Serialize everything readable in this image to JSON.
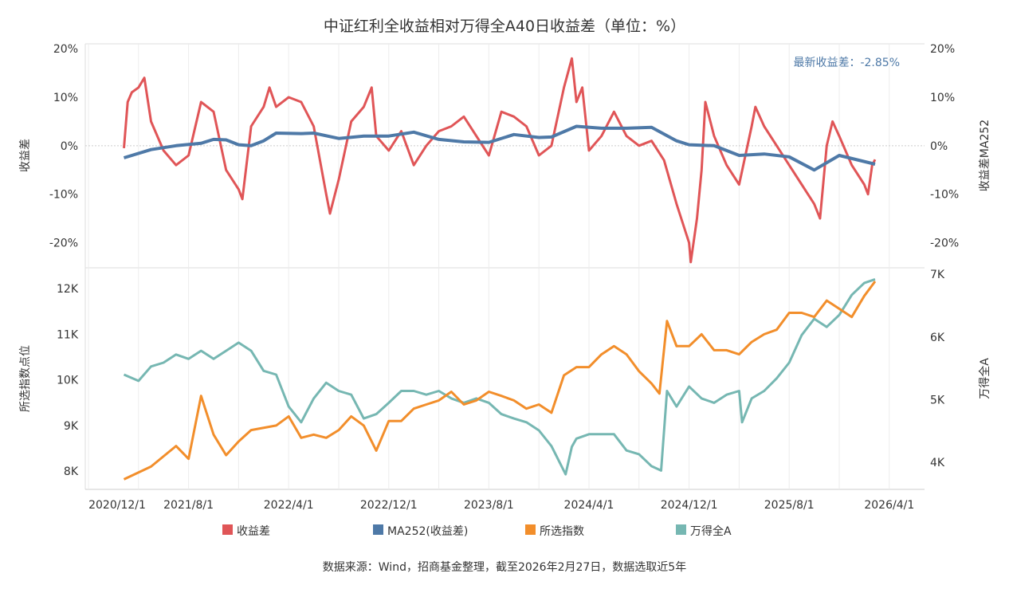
{
  "chart_data": {
    "type": "line",
    "title": "中证红利全收益相对万得全A40日收益差（单位：%）",
    "annotation": "最新收益差：-2.85%",
    "source": "数据来源：Wind，招商基金整理，截至2026年2月27日，数据选取近5年",
    "colors": {
      "diff": "#e05557",
      "ma": "#4e79a7",
      "index": "#f28e2b",
      "wind": "#76b7b2",
      "annotation": "#4e79a7"
    },
    "x_ticks": [
      "2020/12/1",
      "2021/8/1",
      "2022/4/1",
      "2022/12/1",
      "2023/8/1",
      "2024/4/1",
      "2024/12/1",
      "2025/8/1",
      "2026/4/1"
    ],
    "top_panel": {
      "ylabel_left": "收益差",
      "ylabel_right": "收益差MA252",
      "ylim": [
        -25,
        21
      ],
      "yticks": [
        20,
        10,
        0,
        -10,
        -20
      ],
      "ytick_labels": [
        "20%",
        "10%",
        "0%",
        "-10%",
        "-20%"
      ],
      "series": [
        {
          "name": "收益差",
          "color_key": "diff",
          "points": [
            [
              "2021-02-26",
              -0.5
            ],
            [
              "2021-03-05",
              9
            ],
            [
              "2021-03-15",
              11
            ],
            [
              "2021-04-01",
              12
            ],
            [
              "2021-04-15",
              14
            ],
            [
              "2021-05-01",
              5
            ],
            [
              "2021-06-01",
              -1
            ],
            [
              "2021-07-01",
              -4
            ],
            [
              "2021-08-01",
              -2
            ],
            [
              "2021-09-01",
              9
            ],
            [
              "2021-10-01",
              7
            ],
            [
              "2021-11-01",
              -5
            ],
            [
              "2021-12-01",
              -9
            ],
            [
              "2021-12-10",
              -11
            ],
            [
              "2022-01-01",
              4
            ],
            [
              "2022-02-01",
              8
            ],
            [
              "2022-02-15",
              12
            ],
            [
              "2022-03-01",
              8
            ],
            [
              "2022-04-01",
              10
            ],
            [
              "2022-05-01",
              9
            ],
            [
              "2022-06-01",
              4
            ],
            [
              "2022-07-01",
              -10
            ],
            [
              "2022-07-10",
              -14
            ],
            [
              "2022-08-01",
              -7
            ],
            [
              "2022-09-01",
              5
            ],
            [
              "2022-10-01",
              8
            ],
            [
              "2022-10-20",
              12
            ],
            [
              "2022-11-01",
              2
            ],
            [
              "2022-12-01",
              -1
            ],
            [
              "2023-01-01",
              3
            ],
            [
              "2023-02-01",
              -4
            ],
            [
              "2023-03-01",
              0
            ],
            [
              "2023-04-01",
              3
            ],
            [
              "2023-05-01",
              4
            ],
            [
              "2023-06-01",
              6
            ],
            [
              "2023-07-01",
              2
            ],
            [
              "2023-08-01",
              -2
            ],
            [
              "2023-09-01",
              7
            ],
            [
              "2023-10-01",
              6
            ],
            [
              "2023-11-01",
              4
            ],
            [
              "2023-12-01",
              -2
            ],
            [
              "2024-01-01",
              0
            ],
            [
              "2024-02-01",
              12
            ],
            [
              "2024-02-20",
              18
            ],
            [
              "2024-03-01",
              9
            ],
            [
              "2024-03-15",
              12
            ],
            [
              "2024-04-01",
              -1
            ],
            [
              "2024-05-01",
              2
            ],
            [
              "2024-06-01",
              7
            ],
            [
              "2024-07-01",
              2
            ],
            [
              "2024-08-01",
              0
            ],
            [
              "2024-09-01",
              1
            ],
            [
              "2024-10-01",
              -3
            ],
            [
              "2024-11-01",
              -12
            ],
            [
              "2024-12-01",
              -20
            ],
            [
              "2024-12-05",
              -24
            ],
            [
              "2024-12-20",
              -15
            ],
            [
              "2025-01-01",
              -5
            ],
            [
              "2025-01-10",
              9
            ],
            [
              "2025-02-01",
              2
            ],
            [
              "2025-03-01",
              -4
            ],
            [
              "2025-04-01",
              -8
            ],
            [
              "2025-05-01",
              4
            ],
            [
              "2025-05-10",
              8
            ],
            [
              "2025-06-01",
              4
            ],
            [
              "2025-07-01",
              0
            ],
            [
              "2025-08-01",
              -4
            ],
            [
              "2025-09-01",
              -8
            ],
            [
              "2025-10-01",
              -12
            ],
            [
              "2025-10-15",
              -15
            ],
            [
              "2025-11-01",
              0
            ],
            [
              "2025-11-15",
              5
            ],
            [
              "2025-12-01",
              2
            ],
            [
              "2026-01-01",
              -4
            ],
            [
              "2026-02-01",
              -8
            ],
            [
              "2026-02-10",
              -10
            ],
            [
              "2026-02-20",
              -4
            ],
            [
              "2026-02-27",
              -2.85
            ]
          ]
        },
        {
          "name": "MA252(收益差)",
          "color_key": "ma",
          "points": [
            [
              "2021-02-26",
              -2.5
            ],
            [
              "2021-05-01",
              -0.8
            ],
            [
              "2021-07-01",
              0
            ],
            [
              "2021-09-01",
              0.5
            ],
            [
              "2021-10-01",
              1.3
            ],
            [
              "2021-11-01",
              1.2
            ],
            [
              "2021-12-01",
              0.2
            ],
            [
              "2022-01-01",
              0
            ],
            [
              "2022-02-01",
              1
            ],
            [
              "2022-03-01",
              2.6
            ],
            [
              "2022-05-01",
              2.5
            ],
            [
              "2022-06-01",
              2.6
            ],
            [
              "2022-08-01",
              1.5
            ],
            [
              "2022-10-01",
              2
            ],
            [
              "2022-12-01",
              2
            ],
            [
              "2023-02-01",
              2.8
            ],
            [
              "2023-04-01",
              1.3
            ],
            [
              "2023-06-01",
              0.8
            ],
            [
              "2023-08-01",
              0.7
            ],
            [
              "2023-10-01",
              2.3
            ],
            [
              "2023-12-01",
              1.7
            ],
            [
              "2024-01-01",
              1.8
            ],
            [
              "2024-03-01",
              4
            ],
            [
              "2024-05-01",
              3.6
            ],
            [
              "2024-07-01",
              3.6
            ],
            [
              "2024-09-01",
              3.8
            ],
            [
              "2024-11-01",
              1.0
            ],
            [
              "2024-12-01",
              0.2
            ],
            [
              "2025-02-01",
              0
            ],
            [
              "2025-04-01",
              -2
            ],
            [
              "2025-06-01",
              -1.7
            ],
            [
              "2025-08-01",
              -2.3
            ],
            [
              "2025-10-01",
              -5
            ],
            [
              "2025-12-01",
              -2
            ],
            [
              "2026-02-27",
              -3.8
            ]
          ]
        }
      ]
    },
    "bottom_panel": {
      "ylabel_left": "所选指数点位",
      "ylabel_right": "万得全A",
      "ylim_left": [
        7.6,
        12.44
      ],
      "ylim_right": [
        3.57,
        7.09
      ],
      "yticks_left": [
        12,
        11,
        10,
        9,
        8
      ],
      "ytick_labels_left": [
        "12K",
        "11K",
        "10K",
        "9K",
        "8K"
      ],
      "yticks_right": [
        7,
        6,
        5,
        4
      ],
      "ytick_labels_right": [
        "7K",
        "6K",
        "5K",
        "4K"
      ],
      "series": [
        {
          "name": "所选指数",
          "color_key": "index",
          "axis": "left",
          "points": [
            [
              "2021-02-26",
              7.82
            ],
            [
              "2021-05-01",
              8.1
            ],
            [
              "2021-07-01",
              8.55
            ],
            [
              "2021-08-01",
              8.27
            ],
            [
              "2021-09-01",
              9.65
            ],
            [
              "2021-10-01",
              8.8
            ],
            [
              "2021-11-01",
              8.35
            ],
            [
              "2021-12-01",
              8.65
            ],
            [
              "2022-01-01",
              8.9
            ],
            [
              "2022-03-01",
              9.0
            ],
            [
              "2022-04-01",
              9.2
            ],
            [
              "2022-05-01",
              8.73
            ],
            [
              "2022-06-01",
              8.8
            ],
            [
              "2022-07-01",
              8.73
            ],
            [
              "2022-08-01",
              8.9
            ],
            [
              "2022-09-01",
              9.2
            ],
            [
              "2022-10-01",
              9.0
            ],
            [
              "2022-11-01",
              8.45
            ],
            [
              "2022-12-01",
              9.1
            ],
            [
              "2023-01-01",
              9.1
            ],
            [
              "2023-02-01",
              9.37
            ],
            [
              "2023-03-01",
              9.46
            ],
            [
              "2023-04-01",
              9.55
            ],
            [
              "2023-05-01",
              9.74
            ],
            [
              "2023-06-01",
              9.46
            ],
            [
              "2023-07-01",
              9.55
            ],
            [
              "2023-08-01",
              9.74
            ],
            [
              "2023-09-01",
              9.65
            ],
            [
              "2023-10-01",
              9.55
            ],
            [
              "2023-11-01",
              9.37
            ],
            [
              "2023-12-01",
              9.46
            ],
            [
              "2024-01-01",
              9.28
            ],
            [
              "2024-02-01",
              10.1
            ],
            [
              "2024-03-01",
              10.28
            ],
            [
              "2024-04-01",
              10.28
            ],
            [
              "2024-05-01",
              10.56
            ],
            [
              "2024-06-01",
              10.74
            ],
            [
              "2024-07-01",
              10.56
            ],
            [
              "2024-08-01",
              10.19
            ],
            [
              "2024-09-01",
              9.92
            ],
            [
              "2024-09-20",
              9.7
            ],
            [
              "2024-10-08",
              11.29
            ],
            [
              "2024-11-01",
              10.74
            ],
            [
              "2024-12-01",
              10.74
            ],
            [
              "2025-01-01",
              11.0
            ],
            [
              "2025-02-01",
              10.65
            ],
            [
              "2025-03-01",
              10.65
            ],
            [
              "2025-04-01",
              10.56
            ],
            [
              "2025-05-01",
              10.83
            ],
            [
              "2025-06-01",
              11.0
            ],
            [
              "2025-07-01",
              11.1
            ],
            [
              "2025-08-01",
              11.47
            ],
            [
              "2025-09-01",
              11.47
            ],
            [
              "2025-10-01",
              11.38
            ],
            [
              "2025-11-01",
              11.74
            ],
            [
              "2025-12-01",
              11.56
            ],
            [
              "2026-01-01",
              11.38
            ],
            [
              "2026-02-01",
              11.84
            ],
            [
              "2026-02-27",
              12.16
            ]
          ]
        },
        {
          "name": "万得全A",
          "color_key": "wind",
          "axis": "right",
          "points": [
            [
              "2021-02-26",
              5.4
            ],
            [
              "2021-04-01",
              5.3
            ],
            [
              "2021-05-01",
              5.53
            ],
            [
              "2021-06-01",
              5.59
            ],
            [
              "2021-07-01",
              5.72
            ],
            [
              "2021-08-01",
              5.65
            ],
            [
              "2021-09-01",
              5.78
            ],
            [
              "2021-10-01",
              5.65
            ],
            [
              "2021-11-01",
              5.78
            ],
            [
              "2021-12-01",
              5.91
            ],
            [
              "2022-01-01",
              5.78
            ],
            [
              "2022-02-01",
              5.46
            ],
            [
              "2022-03-01",
              5.4
            ],
            [
              "2022-04-01",
              4.89
            ],
            [
              "2022-05-01",
              4.64
            ],
            [
              "2022-06-01",
              5.02
            ],
            [
              "2022-07-01",
              5.27
            ],
            [
              "2022-08-01",
              5.14
            ],
            [
              "2022-09-01",
              5.08
            ],
            [
              "2022-10-01",
              4.7
            ],
            [
              "2022-11-01",
              4.77
            ],
            [
              "2022-12-01",
              4.95
            ],
            [
              "2023-01-01",
              5.14
            ],
            [
              "2023-02-01",
              5.14
            ],
            [
              "2023-03-01",
              5.08
            ],
            [
              "2023-04-01",
              5.14
            ],
            [
              "2023-05-01",
              5.02
            ],
            [
              "2023-06-01",
              4.95
            ],
            [
              "2023-07-01",
              5.02
            ],
            [
              "2023-08-01",
              4.95
            ],
            [
              "2023-09-01",
              4.77
            ],
            [
              "2023-10-01",
              4.7
            ],
            [
              "2023-11-01",
              4.64
            ],
            [
              "2023-12-01",
              4.51
            ],
            [
              "2024-01-01",
              4.26
            ],
            [
              "2024-02-05",
              3.81
            ],
            [
              "2024-02-20",
              4.25
            ],
            [
              "2024-03-01",
              4.38
            ],
            [
              "2024-04-01",
              4.45
            ],
            [
              "2024-05-01",
              4.45
            ],
            [
              "2024-06-01",
              4.45
            ],
            [
              "2024-07-01",
              4.19
            ],
            [
              "2024-08-01",
              4.13
            ],
            [
              "2024-09-01",
              3.94
            ],
            [
              "2024-09-24",
              3.87
            ],
            [
              "2024-10-08",
              5.14
            ],
            [
              "2024-11-01",
              4.89
            ],
            [
              "2024-12-01",
              5.21
            ],
            [
              "2025-01-01",
              5.02
            ],
            [
              "2025-02-01",
              4.95
            ],
            [
              "2025-03-01",
              5.08
            ],
            [
              "2025-04-01",
              5.14
            ],
            [
              "2025-04-08",
              4.64
            ],
            [
              "2025-05-01",
              5.02
            ],
            [
              "2025-06-01",
              5.14
            ],
            [
              "2025-07-01",
              5.34
            ],
            [
              "2025-08-01",
              5.59
            ],
            [
              "2025-09-01",
              6.03
            ],
            [
              "2025-10-01",
              6.29
            ],
            [
              "2025-11-01",
              6.16
            ],
            [
              "2025-12-01",
              6.35
            ],
            [
              "2026-01-01",
              6.67
            ],
            [
              "2026-02-01",
              6.86
            ],
            [
              "2026-02-27",
              6.92
            ]
          ]
        }
      ]
    },
    "legend": [
      "收益差",
      "MA252(收益差)",
      "所选指数",
      "万得全A"
    ],
    "legend_position": "bottom"
  }
}
